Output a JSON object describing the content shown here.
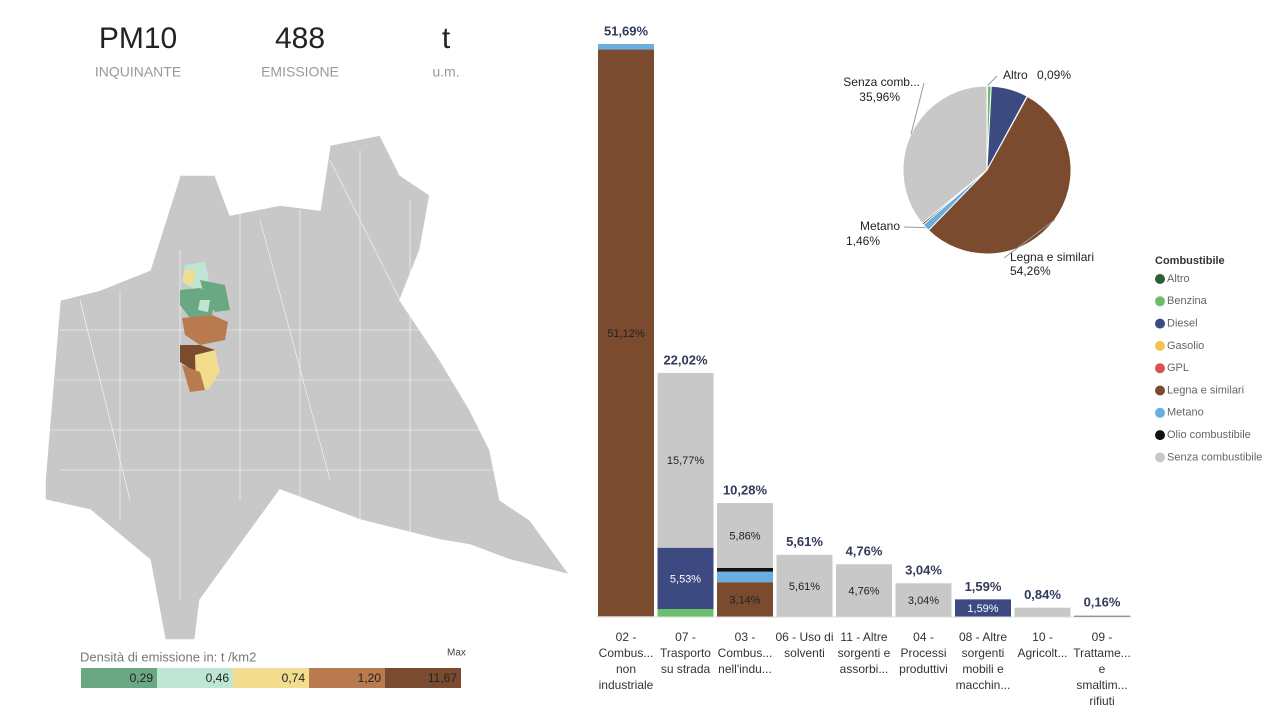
{
  "kpis": [
    {
      "value": "PM10",
      "label": "INQUINANTE"
    },
    {
      "value": 488,
      "label": "EMISSIONE"
    },
    {
      "value": "t",
      "label": "u.m."
    }
  ],
  "map_legend": {
    "title": "Densità di emissione in:  t /km2",
    "max_label": "Max",
    "values": [
      0.29,
      0.46,
      0.74,
      1.2,
      11.67
    ],
    "value_labels": [
      "0,29",
      "0,46",
      "0,74",
      "1,20",
      "11,67"
    ],
    "colors": [
      "#6aa884",
      "#bfe6d4",
      "#f2dc8e",
      "#b87a4e",
      "#7a4b2e"
    ]
  },
  "chart_data": [
    {
      "type": "stacked_bar",
      "categories": [
        "02 - Combus... non industriale",
        "07 - Trasporto su strada",
        "03 - Combus... nell'indu...",
        "06 - Uso di solventi",
        "11 - Altre sorgenti e assorbi...",
        "04 - Processi produttivi",
        "08 - Altre sorgenti mobili e macchin...",
        "10 - Agricolt...",
        "09 - Trattame... e smaltim... rifiuti"
      ],
      "totals": [
        51.69,
        22.02,
        10.28,
        5.61,
        4.76,
        3.04,
        1.59,
        0.84,
        0.16
      ],
      "total_labels": [
        "51,69%",
        "22,02%",
        "10,28%",
        "5,61%",
        "4,76%",
        "3,04%",
        "1,59%",
        "0,84%",
        "0,16%"
      ],
      "legend_title": "Combustibile",
      "series": [
        {
          "name": "Altro",
          "color": "#2d5f2e",
          "values": [
            null,
            null,
            null,
            null,
            null,
            null,
            null,
            null,
            0.09
          ],
          "value_labels": [
            null,
            null,
            null,
            null,
            null,
            null,
            null,
            null,
            null
          ]
        },
        {
          "name": "Benzina",
          "color": "#6bbf6b",
          "values": [
            null,
            0.72,
            null,
            null,
            null,
            null,
            null,
            null,
            null
          ],
          "value_labels": [
            null,
            null,
            null,
            null,
            null,
            null,
            null,
            null,
            null
          ]
        },
        {
          "name": "Diesel",
          "color": "#3d4a82",
          "values": [
            null,
            5.53,
            null,
            null,
            null,
            null,
            1.59,
            null,
            null
          ],
          "value_labels": [
            null,
            "5,53%",
            null,
            null,
            null,
            null,
            "1,59%",
            null,
            null
          ]
        },
        {
          "name": "Gasolio",
          "color": "#f0c64a",
          "values": [
            0.07,
            null,
            null,
            null,
            null,
            null,
            null,
            null,
            null
          ],
          "value_labels": [
            null,
            null,
            null,
            null,
            null,
            null,
            null,
            null,
            null
          ]
        },
        {
          "name": "GPL",
          "color": "#d9534f",
          "values": [
            null,
            null,
            null,
            null,
            null,
            null,
            null,
            null,
            null
          ],
          "value_labels": [
            null,
            null,
            null,
            null,
            null,
            null,
            null,
            null,
            null
          ]
        },
        {
          "name": "Legna e similari",
          "color": "#7a4b2e",
          "values": [
            51.12,
            null,
            3.14,
            null,
            null,
            null,
            null,
            null,
            null
          ],
          "value_labels": [
            "51,12%",
            null,
            "3,14%",
            null,
            null,
            null,
            null,
            null,
            null
          ]
        },
        {
          "name": "Metano",
          "color": "#6aaee0",
          "values": [
            0.5,
            null,
            0.95,
            null,
            null,
            null,
            null,
            null,
            null
          ],
          "value_labels": [
            null,
            null,
            null,
            null,
            null,
            null,
            null,
            null,
            null
          ]
        },
        {
          "name": "Olio combustibile",
          "color": "#111111",
          "values": [
            null,
            null,
            0.33,
            null,
            null,
            null,
            null,
            null,
            null
          ],
          "value_labels": [
            null,
            null,
            null,
            null,
            null,
            null,
            null,
            null,
            null
          ]
        },
        {
          "name": "Senza combustibile",
          "color": "#c8c8c8",
          "values": [
            null,
            15.77,
            5.86,
            5.61,
            4.76,
            3.04,
            null,
            0.84,
            0.07
          ],
          "value_labels": [
            null,
            "15,77%",
            "5,86%",
            "5,61%",
            "4,76%",
            "3,04%",
            null,
            null,
            null
          ]
        }
      ]
    },
    {
      "type": "pie",
      "categories": [
        "Altro",
        null,
        null,
        null,
        "Legna e similari",
        "Metano",
        null,
        "Senza comb..."
      ],
      "values": [
        0.09,
        0.72,
        7.12,
        0.07,
        54.26,
        1.46,
        0.33,
        35.96
      ],
      "value_labels": [
        "0,09%",
        null,
        null,
        null,
        "54,26%",
        "1,46%",
        null,
        "35,96%"
      ],
      "colors": [
        "#2d5f2e",
        "#6bbf6b",
        "#3d4a82",
        "#f0c64a",
        "#7a4b2e",
        "#6aaee0",
        "#111111",
        "#c8c8c8"
      ]
    }
  ]
}
